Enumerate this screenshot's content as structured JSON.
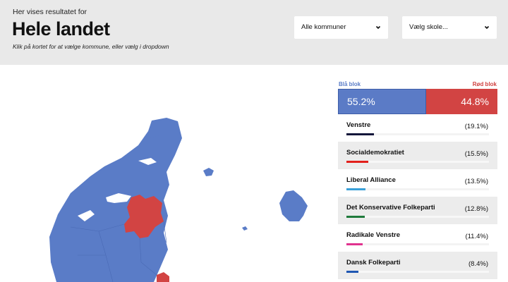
{
  "header": {
    "kicker": "Her vises resultatet for",
    "title": "Hele landet",
    "hint": "Klik på kortet for at vælge kommune, eller vælg i dropdown"
  },
  "filters": {
    "kommune": {
      "selected": "Alle kommuner",
      "icon": "chevron-down-icon"
    },
    "skole": {
      "selected": "Vælg skole...",
      "icon": "chevron-down-icon"
    }
  },
  "blocs": {
    "blue": {
      "label": "Blå blok",
      "percent": 55.2,
      "text": "55.2%",
      "color": "#5b7bc6"
    },
    "red": {
      "label": "Rød blok",
      "percent": 44.8,
      "text": "44.8%",
      "color": "#d24443"
    }
  },
  "parties": [
    {
      "name": "Venstre",
      "pct": "(19.1%)",
      "value": 19.1,
      "color": "#12163a"
    },
    {
      "name": "Socialdemokratiet",
      "pct": "(15.5%)",
      "value": 15.5,
      "color": "#e3201b"
    },
    {
      "name": "Liberal Alliance",
      "pct": "(13.5%)",
      "value": 13.5,
      "color": "#3aa0d8"
    },
    {
      "name": "Det Konservative Folkeparti",
      "pct": "(12.8%)",
      "value": 12.8,
      "color": "#1f7a3c"
    },
    {
      "name": "Radikale Venstre",
      "pct": "(11.4%)",
      "value": 11.4,
      "color": "#e0338f"
    },
    {
      "name": "Dansk Folkeparti",
      "pct": "(8.4%)",
      "value": 8.4,
      "color": "#1f57b3"
    }
  ],
  "map": {
    "blue_color": "#5a7cc7",
    "red_color": "#d24443"
  }
}
